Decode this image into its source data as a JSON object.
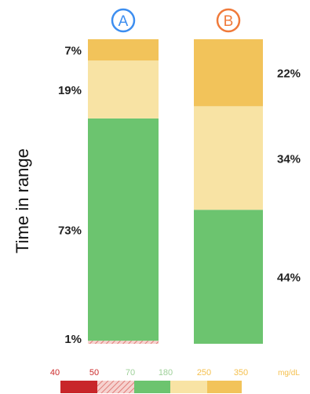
{
  "chart_data": {
    "type": "bar",
    "stacked": true,
    "ylabel": "Time in range",
    "categories": [
      "A",
      "B"
    ],
    "series": [
      {
        "range": "40-50",
        "values": [
          0,
          0
        ],
        "color": "#c8262a"
      },
      {
        "range": "50-70",
        "values": [
          1,
          0
        ],
        "color": "#e8908c"
      },
      {
        "range": "70-180",
        "values": [
          73,
          44
        ],
        "color": "#6cc46f"
      },
      {
        "range": "180-250",
        "values": [
          19,
          34
        ],
        "color": "#f8e3a4"
      },
      {
        "range": "250-350",
        "values": [
          7,
          22
        ],
        "color": "#f2c35a"
      }
    ],
    "labels": {
      "A": [
        {
          "text": "7%",
          "series": 4
        },
        {
          "text": "19%",
          "series": 3
        },
        {
          "text": "73%",
          "series": 2
        },
        {
          "text": "1%",
          "series": 1
        }
      ],
      "B": [
        {
          "text": "22%",
          "series": 4
        },
        {
          "text": "34%",
          "series": 3
        },
        {
          "text": "44%",
          "series": 2
        }
      ]
    },
    "category_colors": {
      "A": "#3d8ef0",
      "B": "#f07a3a"
    },
    "legend": {
      "ticks": [
        "40",
        "50",
        "70",
        "180",
        "250",
        "350"
      ],
      "unit": "mg/dL",
      "tick_colors": [
        "#cc2b2b",
        "#cc2b2b",
        "#9fd19a",
        "#9fd19a",
        "#f5c04e",
        "#f5c04e"
      ]
    }
  }
}
